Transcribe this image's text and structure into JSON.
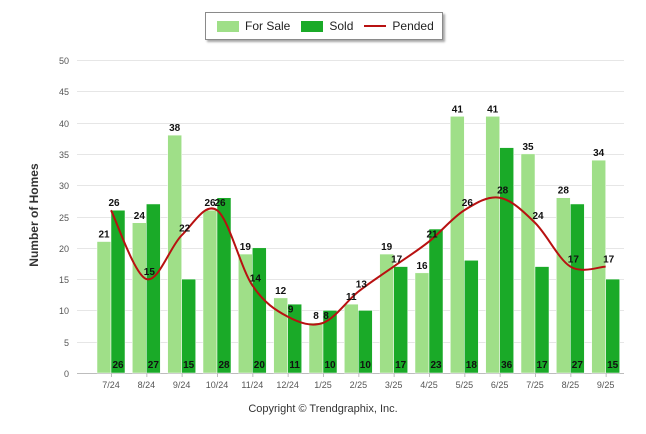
{
  "chart_data": {
    "type": "bar",
    "title": "",
    "xlabel": "",
    "ylabel": "Number of Homes",
    "ylim": [
      0,
      50
    ],
    "yticks": [
      0,
      5,
      10,
      15,
      20,
      25,
      30,
      35,
      40,
      45,
      50
    ],
    "categories": [
      "7/24",
      "8/24",
      "9/24",
      "10/24",
      "11/24",
      "12/24",
      "1/25",
      "2/25",
      "3/25",
      "4/25",
      "5/25",
      "6/25",
      "7/25",
      "8/25",
      "9/25"
    ],
    "series": [
      {
        "name": "For Sale",
        "type": "bar",
        "color": "#9fdf88",
        "values": [
          21,
          24,
          38,
          26,
          19,
          12,
          8,
          11,
          19,
          16,
          41,
          41,
          35,
          28,
          34
        ]
      },
      {
        "name": "Sold",
        "type": "bar",
        "color": "#1aaa28",
        "values": [
          26,
          27,
          15,
          28,
          20,
          11,
          10,
          10,
          17,
          23,
          18,
          36,
          17,
          27,
          15
        ]
      },
      {
        "name": "Pended",
        "type": "line",
        "color": "#b81111",
        "values": [
          26,
          15,
          22,
          26,
          14,
          9,
          8,
          13,
          17,
          21,
          26,
          28,
          24,
          17,
          17
        ]
      }
    ],
    "legend": "top-center",
    "grid": true
  },
  "footer": {
    "copyright": "Copyright © Trendgraphix, Inc."
  }
}
